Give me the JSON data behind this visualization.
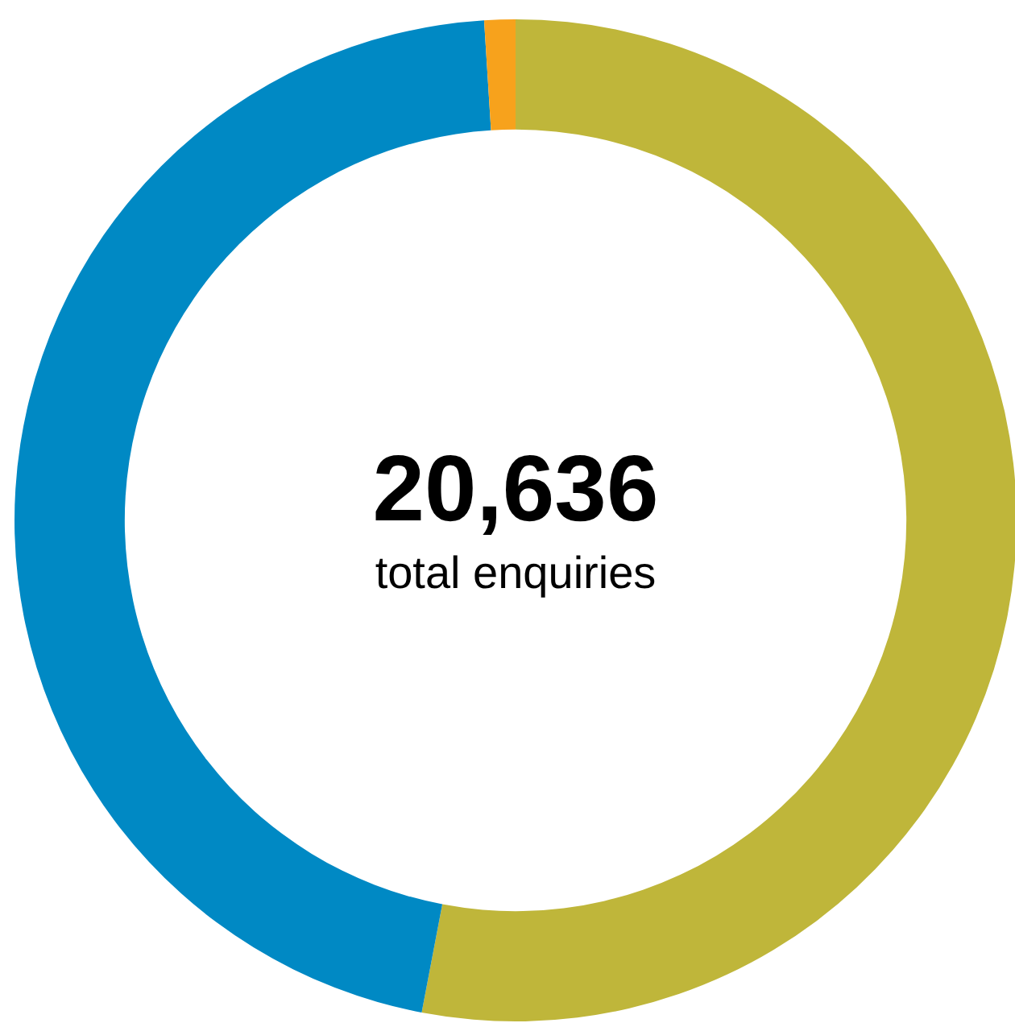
{
  "chart_data": {
    "type": "donut",
    "categories": [
      null,
      null,
      null
    ],
    "values": [
      53,
      46,
      1
    ],
    "colors": [
      "#bfb63a",
      "#0089c4",
      "#f7a21c"
    ],
    "annotations": [
      "20,636",
      "total enquiries"
    ]
  }
}
